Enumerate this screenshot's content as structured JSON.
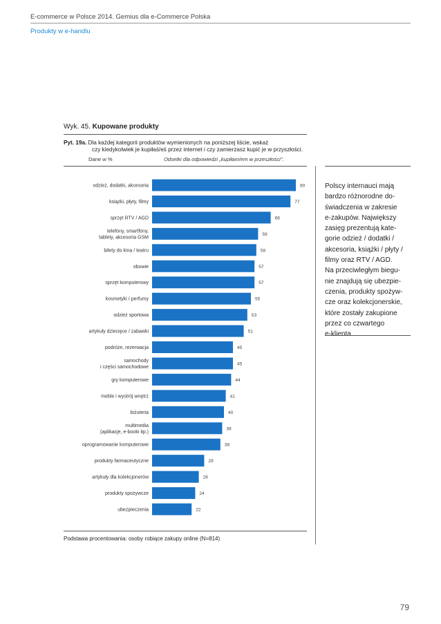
{
  "header": {
    "doc_title": "E-commerce w Polsce 2014. Gemius dla e-Commerce Polska",
    "section": "Produkty w e-handlu"
  },
  "figure": {
    "prefix": "Wyk. 45.",
    "title": "Kupowane produkty",
    "question_number": "Pyt. 19a.",
    "question_line1": "Dla każdej kategorii produktów wymienionych na poniższej liście, wskaż",
    "question_line2": "czy kiedykolwiek je kupiłaś/eś przez internet i czy zamierzasz kupić je w przyszłości.",
    "unit_label": "Dane w %",
    "note": "Odsetki dla odpowiedzi „kupiłam/em w przeszłości\".",
    "base": "Podstawa procentowania: osoby robiące zakupy online (N=814)"
  },
  "chart_data": {
    "type": "bar",
    "orientation": "horizontal",
    "bar_color": "#1a73c5",
    "categories": [
      "odzież, dodatki, akcesoria",
      "książki, płyty, filmy",
      "sprzęt RTV / AGD",
      "telefony, smartfony,\ntablety, akcesoria GSM",
      "bilety do kina / teatru",
      "obuwie",
      "sprzęt komputerowy",
      "kosmetyki / perfumy",
      "odzież sportowa",
      "artykuły dziecięce / zabawki",
      "podróże, rezerwacja",
      "samochody\ni części samochodowe",
      "gry komputerowe",
      "meble i wystrój wnętrz",
      "biżuteria",
      "multimedia\n(aplikacje, e-booki itp.)",
      "oprogramowanie komputerowe",
      "produkty farmaceutyczne",
      "artykuły dla kolekcjonerów",
      "produkty spożywcze",
      "ubezpieczenia"
    ],
    "values": [
      80,
      77,
      66,
      59,
      58,
      57,
      57,
      55,
      53,
      51,
      45,
      45,
      44,
      41,
      40,
      39,
      38,
      29,
      26,
      24,
      22
    ],
    "xlim": [
      0,
      100
    ]
  },
  "sidebar": {
    "text": "Polscy internauci mają\nbardzo różnorodne do-\nświadczenia w zakresie\ne-zakupów. Największy\nzasięg prezentują kate-\ngorie odzież / dodatki /\nakcesoria, książki / płyty /\nfilmy oraz RTV / AGD.\nNa przeciwległym biegu-\nnie znajdują się ubezpie-\nczenia, produkty spożyw-\ncze oraz kolekcjonerskie,\nktóre zostały zakupione\nprzez co czwartego\ne-klienta."
  },
  "page_number": "79"
}
